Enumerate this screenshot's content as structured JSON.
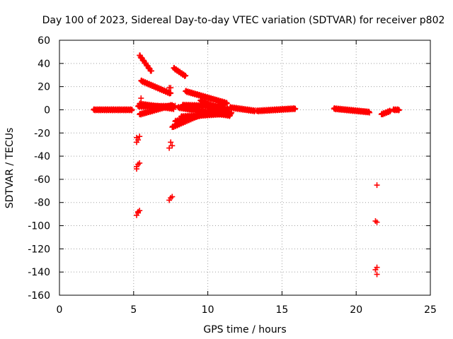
{
  "chart_data": {
    "type": "scatter",
    "title": "Day 100 of 2023, Sidereal Day-to-day VTEC variation (SDTVAR) for receiver p802",
    "xlabel": "GPS time / hours",
    "ylabel": "SDTVAR / TECUs",
    "xlim": [
      0,
      25
    ],
    "ylim": [
      -160,
      60
    ],
    "xticks": [
      0,
      5,
      10,
      15,
      20,
      25
    ],
    "yticks": [
      60,
      40,
      20,
      0,
      -20,
      -40,
      -60,
      -80,
      -100,
      -120,
      -140,
      -160
    ],
    "grid": true,
    "marker": "+",
    "color": "#ff0000",
    "segments": [
      {
        "x": [
          2.3,
          4.9
        ],
        "y": [
          0,
          0
        ]
      },
      {
        "x": [
          5.4,
          6.2
        ],
        "y": [
          47,
          33
        ]
      },
      {
        "x": [
          5.5,
          7.5
        ],
        "y": [
          25,
          14
        ]
      },
      {
        "x": [
          5.3,
          7.8
        ],
        "y": [
          3,
          3
        ]
      },
      {
        "x": [
          5.4,
          7.6
        ],
        "y": [
          -4,
          4
        ]
      },
      {
        "x": [
          5.4,
          7.7
        ],
        "y": [
          5,
          1
        ]
      },
      {
        "x": [
          7.7,
          8.5
        ],
        "y": [
          36,
          29
        ]
      },
      {
        "x": [
          8.5,
          11.2
        ],
        "y": [
          16,
          6
        ]
      },
      {
        "x": [
          7.6,
          11.3
        ],
        "y": [
          -15,
          6
        ]
      },
      {
        "x": [
          7.8,
          11.4
        ],
        "y": [
          -10,
          1
        ]
      },
      {
        "x": [
          8.2,
          11.6
        ],
        "y": [
          -6,
          -3
        ]
      },
      {
        "x": [
          8.0,
          11.5
        ],
        "y": [
          2,
          -5
        ]
      },
      {
        "x": [
          8.3,
          11.0
        ],
        "y": [
          4,
          3
        ]
      },
      {
        "x": [
          9.5,
          11.3
        ],
        "y": [
          8,
          -2
        ]
      },
      {
        "x": [
          11.5,
          13.2
        ],
        "y": [
          2,
          -1
        ]
      },
      {
        "x": [
          13.3,
          15.9
        ],
        "y": [
          -1,
          1
        ]
      },
      {
        "x": [
          18.5,
          20.9
        ],
        "y": [
          1,
          -2
        ]
      },
      {
        "x": [
          21.7,
          22.3
        ],
        "y": [
          -4,
          -1
        ]
      },
      {
        "x": [
          22.5,
          22.9
        ],
        "y": [
          0,
          0
        ]
      }
    ],
    "points": [
      {
        "x": 5.5,
        "y": 10
      },
      {
        "x": 7.4,
        "y": 19
      },
      {
        "x": 7.5,
        "y": 19
      },
      {
        "x": 5.2,
        "y": -24
      },
      {
        "x": 5.3,
        "y": -26
      },
      {
        "x": 5.2,
        "y": -28
      },
      {
        "x": 5.4,
        "y": -23
      },
      {
        "x": 5.3,
        "y": -47
      },
      {
        "x": 5.2,
        "y": -49
      },
      {
        "x": 5.4,
        "y": -46
      },
      {
        "x": 5.2,
        "y": -51
      },
      {
        "x": 5.4,
        "y": -87
      },
      {
        "x": 5.3,
        "y": -89
      },
      {
        "x": 5.2,
        "y": -91
      },
      {
        "x": 5.3,
        "y": -88
      },
      {
        "x": 7.5,
        "y": -28
      },
      {
        "x": 7.6,
        "y": -31
      },
      {
        "x": 7.4,
        "y": -33
      },
      {
        "x": 7.5,
        "y": -76
      },
      {
        "x": 7.4,
        "y": -78
      },
      {
        "x": 7.6,
        "y": -75
      },
      {
        "x": 21.4,
        "y": -65
      },
      {
        "x": 21.4,
        "y": -97
      },
      {
        "x": 21.3,
        "y": -96
      },
      {
        "x": 21.4,
        "y": -136
      },
      {
        "x": 21.3,
        "y": -138
      },
      {
        "x": 21.4,
        "y": -142
      }
    ]
  }
}
